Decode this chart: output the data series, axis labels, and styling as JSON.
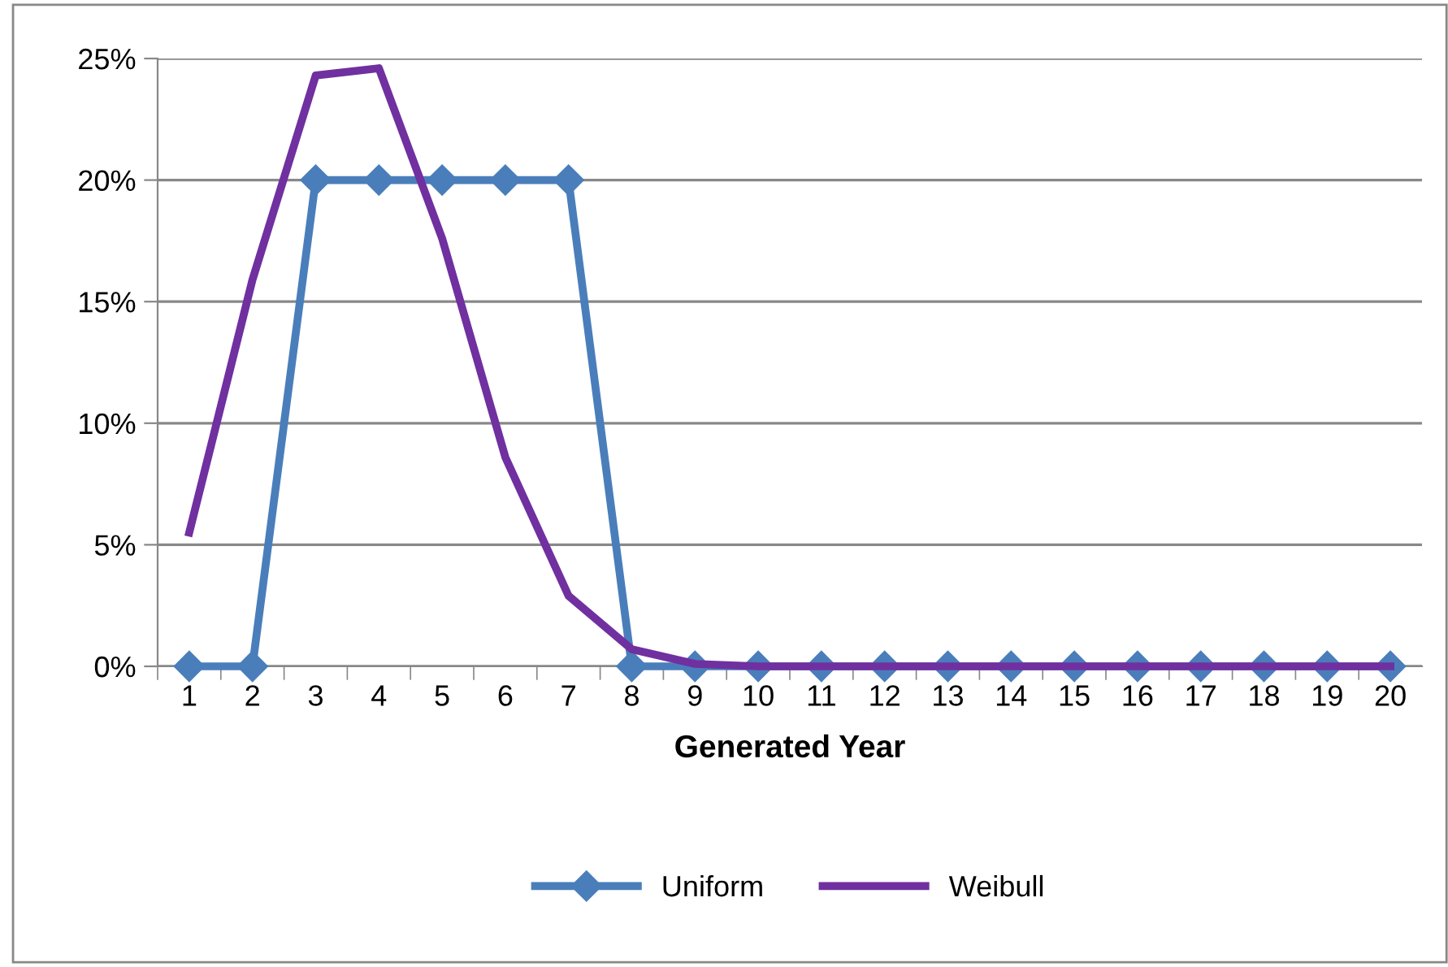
{
  "chart_data": {
    "type": "line",
    "xlabel": "Generated Year",
    "categories": [
      "1",
      "2",
      "3",
      "4",
      "5",
      "6",
      "7",
      "8",
      "9",
      "10",
      "11",
      "12",
      "13",
      "14",
      "15",
      "16",
      "17",
      "18",
      "19",
      "20"
    ],
    "series": [
      {
        "name": "Uniform",
        "color": "#4a7ebb",
        "marker": "diamond",
        "values": [
          0,
          0,
          20,
          20,
          20,
          20,
          20,
          0,
          0,
          0,
          0,
          0,
          0,
          0,
          0,
          0,
          0,
          0,
          0,
          0
        ]
      },
      {
        "name": "Weibull",
        "color": "#7030a0",
        "marker": "none",
        "values": [
          5.5,
          15.9,
          24.3,
          24.6,
          17.6,
          8.6,
          2.9,
          0.7,
          0.1,
          0,
          0,
          0,
          0,
          0,
          0,
          0,
          0,
          0,
          0,
          0
        ]
      }
    ],
    "ylim": [
      0,
      25
    ],
    "yticks": [
      {
        "value": 0,
        "label": "0%"
      },
      {
        "value": 5,
        "label": "5%"
      },
      {
        "value": 10,
        "label": "10%"
      },
      {
        "value": 15,
        "label": "15%"
      },
      {
        "value": 20,
        "label": "20%"
      },
      {
        "value": 25,
        "label": "25%"
      }
    ],
    "grid": "y",
    "legend": "bottom"
  }
}
